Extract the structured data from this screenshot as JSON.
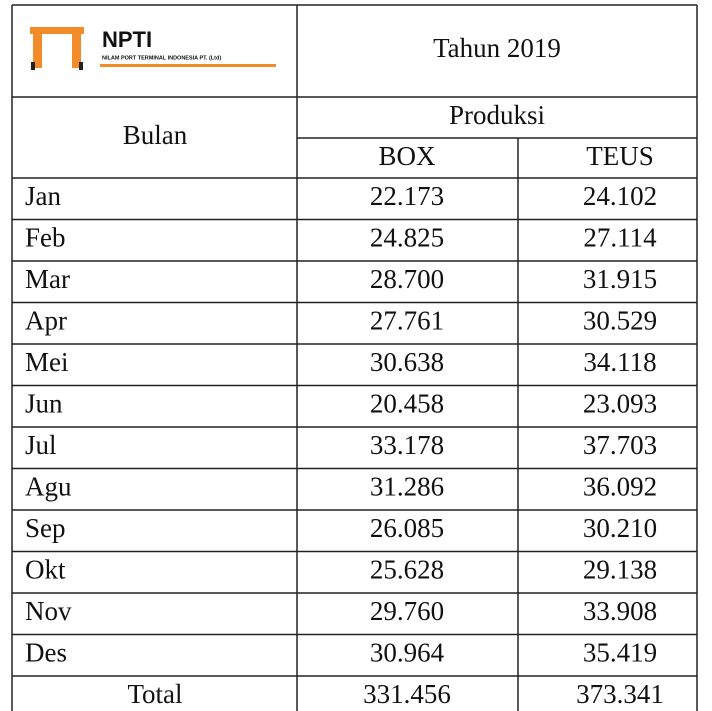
{
  "header": {
    "logo_name": "NPTI",
    "logo_subtitle": "NILAM PORT TERMINAL INDONESIA PT. (Ltd)",
    "year": "Tahun 2019"
  },
  "table": {
    "month_header": "Bulan",
    "group_header": "Produksi",
    "columns": [
      "BOX",
      "TEUS"
    ],
    "rows": [
      [
        "Jan",
        "22.173",
        "24.102"
      ],
      [
        "Feb",
        "24.825",
        "27.114"
      ],
      [
        "Mar",
        "28.700",
        "31.915"
      ],
      [
        "Apr",
        "27.761",
        "30.529"
      ],
      [
        "Mei",
        "30.638",
        "34.118"
      ],
      [
        "Jun",
        "20.458",
        "23.093"
      ],
      [
        "Jul",
        "33.178",
        "37.703"
      ],
      [
        "Agu",
        "31.286",
        "36.092"
      ],
      [
        "Sep",
        "26.085",
        "30.210"
      ],
      [
        "Okt",
        "25.628",
        "29.138"
      ],
      [
        "Nov",
        "29.760",
        "33.908"
      ],
      [
        "Des",
        "30.964",
        "35.419"
      ]
    ],
    "total": [
      "Total",
      "331.456",
      "373.341"
    ]
  }
}
